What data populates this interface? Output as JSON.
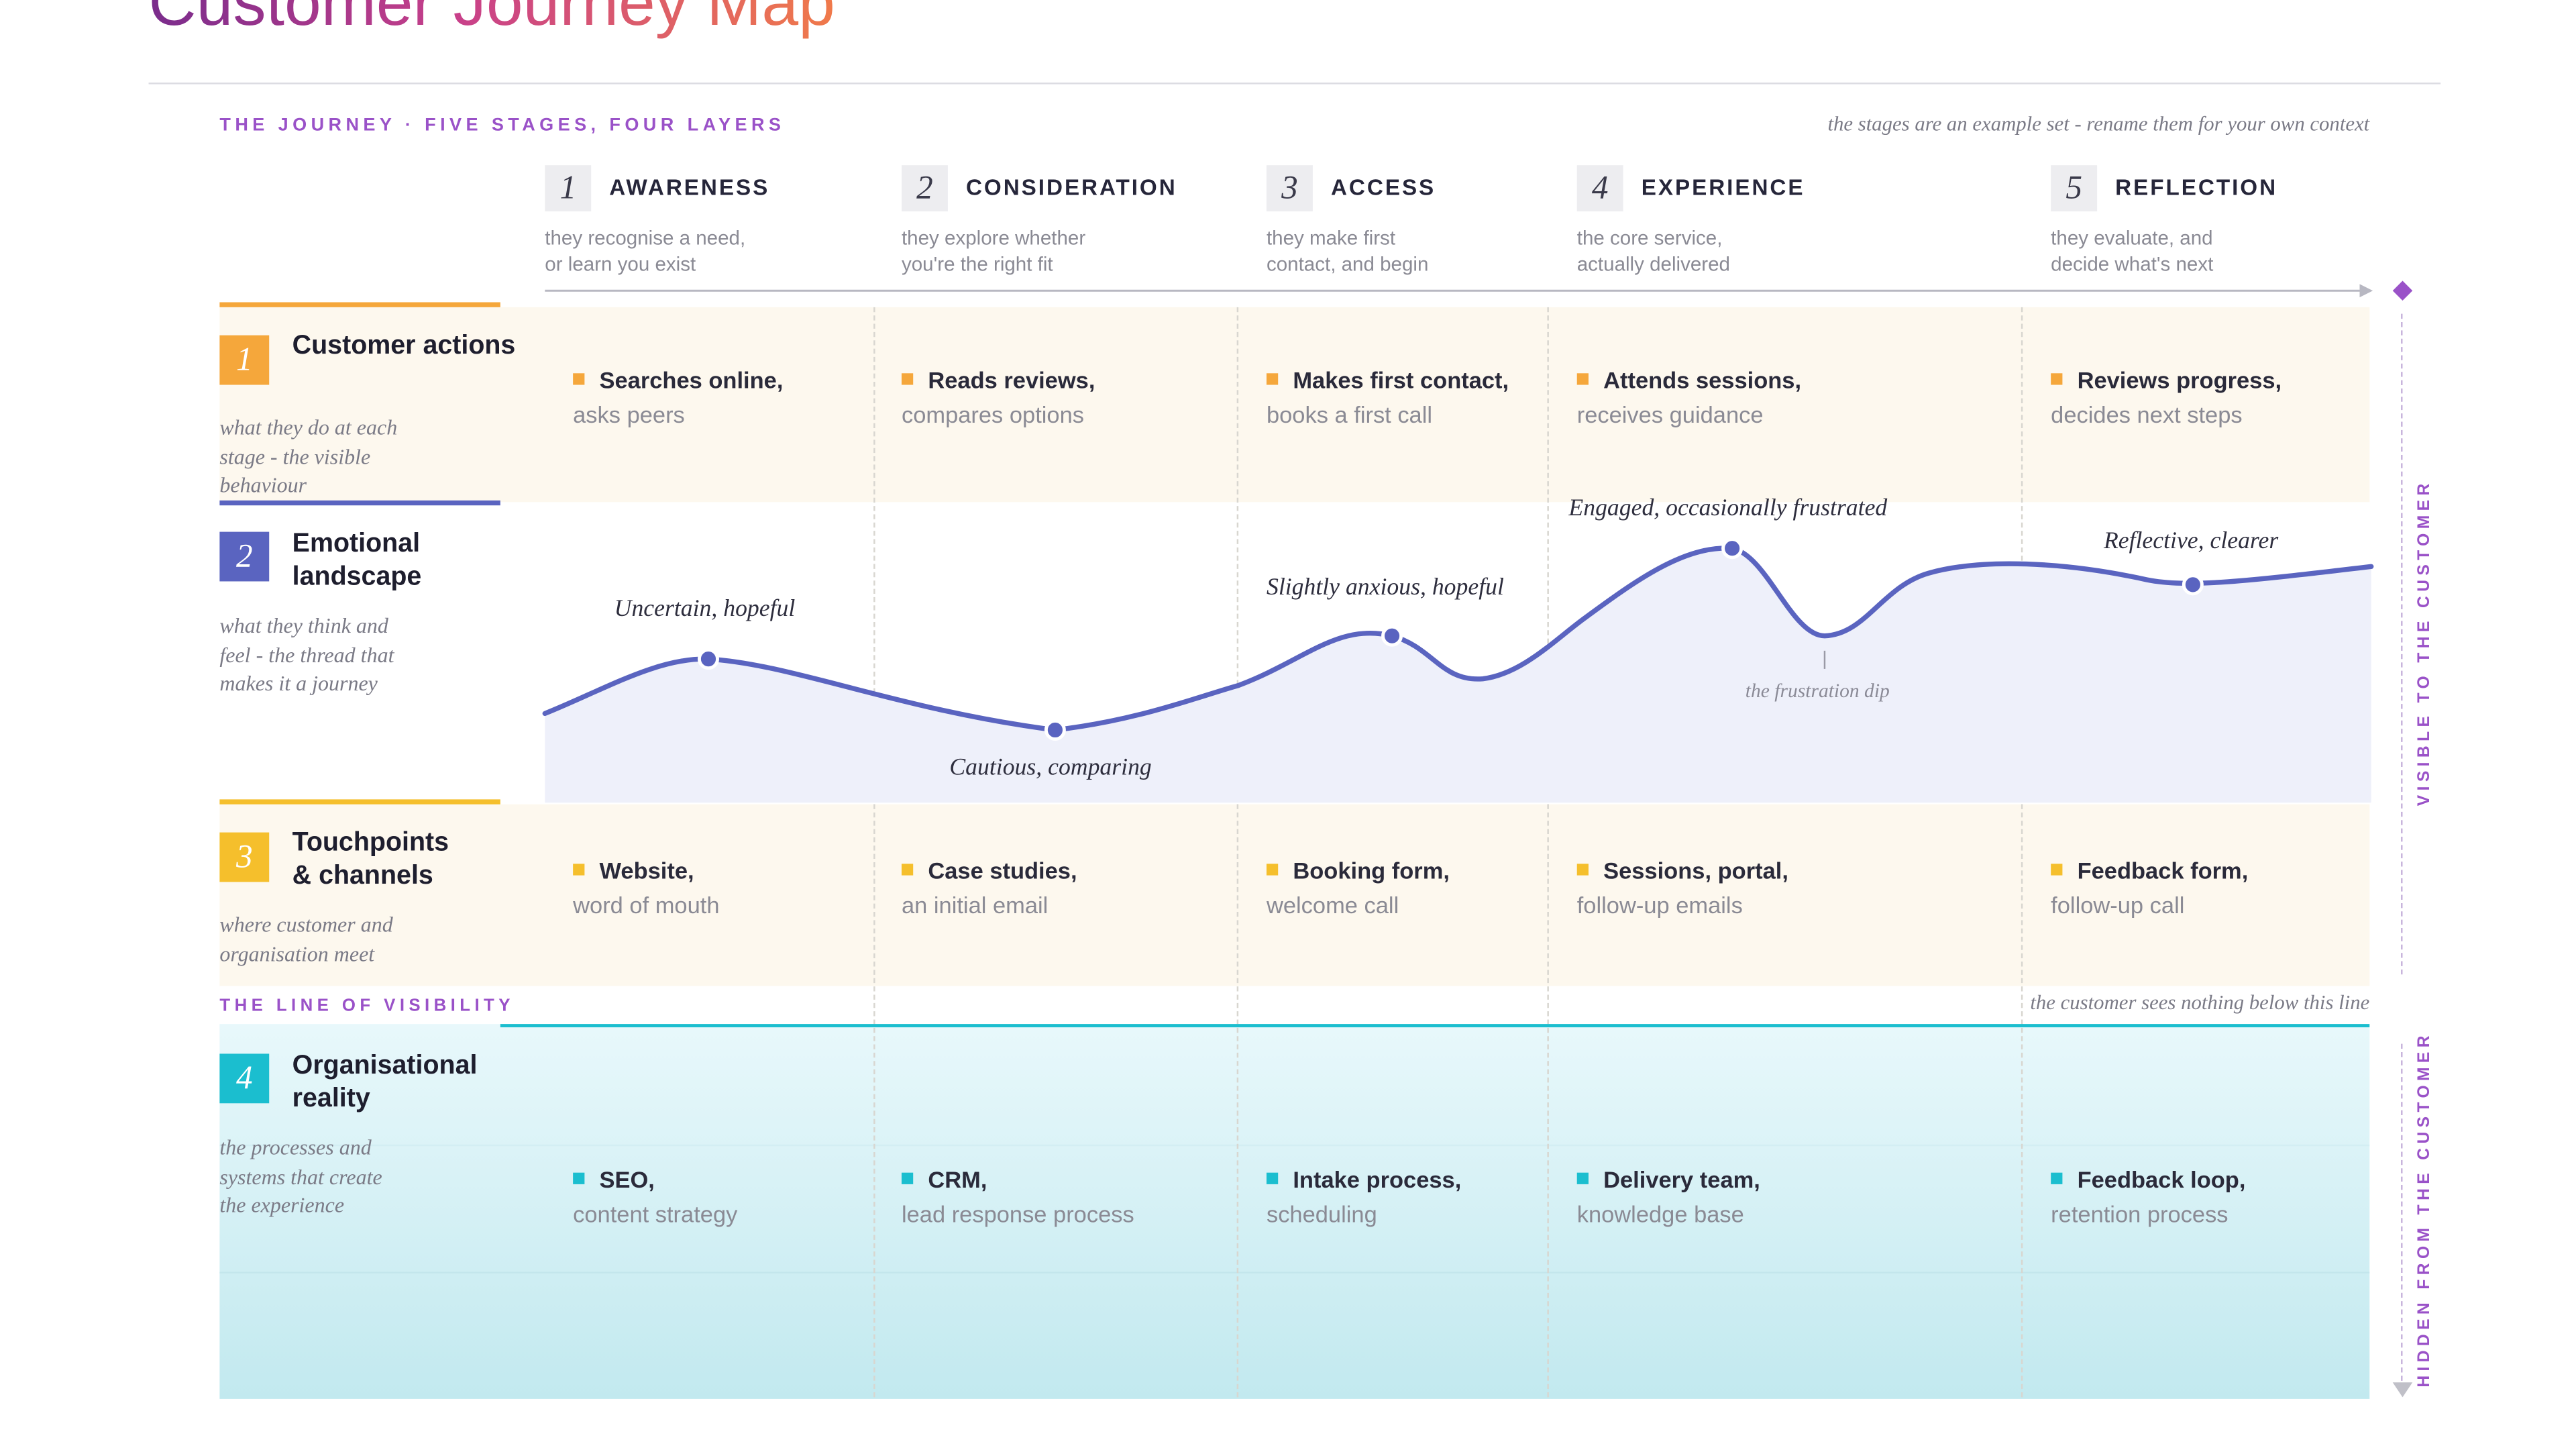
{
  "title": "Customer Journey Map",
  "kicker": "THE JOURNEY · FIVE STAGES, FOUR LAYERS",
  "stages_note": "the stages are an example set - rename them for your own context",
  "stages": [
    {
      "num": "1",
      "name": "AWARENESS",
      "desc1": "they recognise a need,",
      "desc2": "or learn you exist"
    },
    {
      "num": "2",
      "name": "CONSIDERATION",
      "desc1": "they explore whether",
      "desc2": "you're the right fit"
    },
    {
      "num": "3",
      "name": "ACCESS",
      "desc1": "they make first",
      "desc2": "contact, and begin"
    },
    {
      "num": "4",
      "name": "EXPERIENCE",
      "desc1": "the core service,",
      "desc2": "actually delivered"
    },
    {
      "num": "5",
      "name": "REFLECTION",
      "desc1": "they evaluate, and",
      "desc2": "decide what's next"
    }
  ],
  "layers": [
    {
      "num": "1",
      "title1": "Customer actions",
      "title2": "",
      "sub1": "what they do at each",
      "sub2": "stage - the visible",
      "sub3": "behaviour",
      "cells": [
        {
          "head": "Searches online,",
          "sub": "asks peers"
        },
        {
          "head": "Reads reviews,",
          "sub": "compares options"
        },
        {
          "head": "Makes first contact,",
          "sub": "books a first call"
        },
        {
          "head": "Attends sessions,",
          "sub": "receives guidance"
        },
        {
          "head": "Reviews progress,",
          "sub": "decides next steps"
        }
      ]
    },
    {
      "num": "2",
      "title1": "Emotional",
      "title2": "landscape",
      "sub1": "what they think and",
      "sub2": "feel - the thread that",
      "sub3": "makes it a journey",
      "cells": []
    },
    {
      "num": "3",
      "title1": "Touchpoints",
      "title2": "& channels",
      "sub1": "where customer and",
      "sub2": "organisation meet",
      "sub3": "",
      "cells": [
        {
          "head": "Website,",
          "sub": "word of mouth"
        },
        {
          "head": "Case studies,",
          "sub": "an initial email"
        },
        {
          "head": "Booking form,",
          "sub": "welcome call"
        },
        {
          "head": "Sessions, portal,",
          "sub": "follow-up emails"
        },
        {
          "head": "Feedback form,",
          "sub": "follow-up call"
        }
      ]
    },
    {
      "num": "4",
      "title1": "Organisational",
      "title2": "reality",
      "sub1": "the processes and",
      "sub2": "systems that create",
      "sub3": "the experience",
      "cells": [
        {
          "head": "SEO,",
          "sub": "content strategy"
        },
        {
          "head": "CRM,",
          "sub": "lead response process"
        },
        {
          "head": "Intake process,",
          "sub": "scheduling"
        },
        {
          "head": "Delivery team,",
          "sub": "knowledge base"
        },
        {
          "head": "Feedback loop,",
          "sub": "retention process"
        }
      ]
    }
  ],
  "emotions": [
    {
      "label": "Uncertain, hopeful"
    },
    {
      "label": "Cautious, comparing"
    },
    {
      "label": "Slightly anxious, hopeful"
    },
    {
      "label": "Engaged, occasionally frustrated"
    },
    {
      "label": "Reflective, clearer"
    }
  ],
  "frustration_note": "the frustration dip",
  "visibility": {
    "label": "THE LINE OF VISIBILITY",
    "note": "the customer sees nothing below this line"
  },
  "side_labels": {
    "visible": "VISIBLE TO THE CUSTOMER",
    "hidden": "HIDDEN FROM THE CUSTOMER"
  },
  "colors": {
    "accent": "#9a52c8",
    "layer1": "#f5a73b",
    "layer2": "#5a64c0",
    "layer3": "#f5bf2c",
    "layer4": "#1bbecf",
    "curve": "#5a64c0"
  }
}
